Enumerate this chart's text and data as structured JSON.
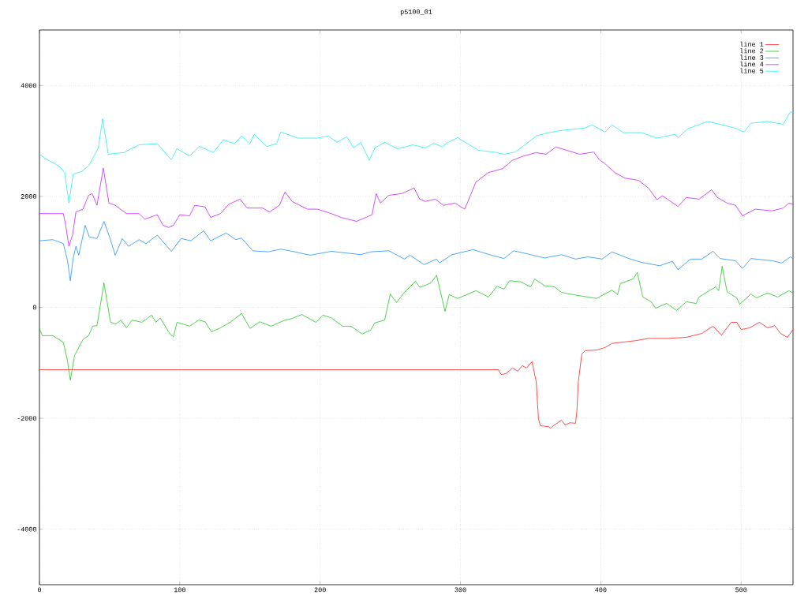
{
  "chart_data": {
    "type": "line",
    "title": "p5100_01",
    "xlim": [
      0,
      537
    ],
    "ylim": [
      -5000,
      5000
    ],
    "xticks": [
      0,
      100,
      200,
      300,
      400,
      500
    ],
    "yticks": [
      -4000,
      -2000,
      0,
      2000,
      4000
    ],
    "grid": true,
    "legend": "top right",
    "marker": "none",
    "line_style": "solid",
    "series": [
      {
        "name": "line 1",
        "color": "#ff0000",
        "x": [
          0,
          327,
          329,
          332.5,
          337,
          341,
          344,
          347,
          351,
          354,
          355.6,
          357,
          363,
          364,
          367,
          372,
          374.7,
          378,
          382,
          383,
          384,
          386.5,
          389,
          397,
          403,
          408,
          425,
          434,
          448,
          461,
          472,
          480,
          486,
          493,
          497,
          500,
          506,
          513,
          519,
          524,
          528,
          533,
          537
        ],
        "values": [
          -1125,
          -1125,
          -1210,
          -1195,
          -1095,
          -1150,
          -1050,
          -1095,
          -980,
          -1340,
          -2010,
          -2135,
          -2150,
          -2180,
          -2120,
          -2035,
          -2120,
          -2080,
          -2090,
          -1865,
          -1340,
          -840,
          -780,
          -770,
          -725,
          -650,
          -600,
          -560,
          -560,
          -540,
          -470,
          -340,
          -500,
          -270,
          -270,
          -400,
          -370,
          -270,
          -370,
          -330,
          -470,
          -540,
          -400
        ]
      },
      {
        "name": "line 2",
        "color": "#00c000",
        "x": [
          0,
          2,
          9.5,
          17,
          20,
          22,
          25,
          31,
          35,
          38,
          41,
          46,
          50.6,
          54.5,
          58,
          62,
          66,
          73,
          80,
          83,
          86,
          93,
          95.5,
          98,
          107,
          113.5,
          118,
          122.5,
          129,
          136.5,
          144,
          150,
          157,
          165,
          174,
          180,
          187,
          197,
          202,
          208,
          216,
          222,
          230,
          236,
          239,
          246,
          250,
          254.5,
          260,
          268,
          271,
          279,
          283,
          289,
          292,
          298,
          311,
          320,
          326,
          331,
          335,
          343,
          350,
          353,
          360,
          367,
          372,
          380,
          391,
          397,
          408,
          412,
          414,
          423,
          426,
          430,
          436,
          439,
          447,
          454,
          461,
          468,
          470,
          478,
          482,
          484,
          486.5,
          490,
          497,
          499,
          507,
          511,
          519,
          526,
          534,
          537
        ],
        "values": [
          -380,
          -510,
          -510,
          -630,
          -970,
          -1310,
          -870,
          -580,
          -510,
          -340,
          -330,
          440,
          -270,
          -300,
          -230,
          -370,
          -230,
          -270,
          -140,
          -270,
          -190,
          -480,
          -530,
          -270,
          -340,
          -230,
          -260,
          -440,
          -370,
          -260,
          -110,
          -380,
          -260,
          -340,
          -240,
          -200,
          -130,
          -270,
          -140,
          -190,
          -340,
          -340,
          -480,
          -410,
          -280,
          -230,
          240,
          85,
          270,
          470,
          360,
          440,
          580,
          -70,
          230,
          160,
          300,
          185,
          380,
          330,
          480,
          460,
          370,
          510,
          390,
          370,
          270,
          230,
          185,
          160,
          310,
          230,
          430,
          510,
          630,
          185,
          100,
          -15,
          70,
          -55,
          100,
          70,
          185,
          310,
          370,
          300,
          740,
          280,
          170,
          55,
          240,
          170,
          260,
          185,
          300,
          255
        ]
      },
      {
        "name": "line 3",
        "color": "#0080ff",
        "x": [
          0,
          9.5,
          17,
          20,
          22,
          24,
          26,
          28,
          32.6,
          35.5,
          41,
          46,
          50.6,
          54,
          59,
          63.5,
          71,
          76,
          84,
          94,
          101,
          108,
          117,
          122,
          133,
          140,
          144,
          152,
          163,
          172,
          180,
          193,
          208,
          229,
          236,
          249,
          260,
          264,
          274,
          283,
          285,
          294,
          309,
          322,
          331,
          338,
          350,
          360,
          372,
          382,
          391,
          401,
          408,
          420,
          429,
          442,
          451,
          455,
          464,
          472,
          480,
          485,
          496,
          501,
          507,
          522,
          529,
          535,
          537
        ],
        "values": [
          1200,
          1220,
          1150,
          840,
          480,
          880,
          1100,
          940,
          1480,
          1270,
          1240,
          1550,
          1220,
          940,
          1240,
          1100,
          1220,
          1150,
          1300,
          1010,
          1240,
          1200,
          1380,
          1200,
          1340,
          1220,
          1250,
          1020,
          1000,
          1050,
          1010,
          940,
          1010,
          950,
          1000,
          1020,
          870,
          940,
          770,
          870,
          800,
          950,
          1040,
          940,
          880,
          1020,
          950,
          890,
          950,
          870,
          910,
          870,
          1000,
          880,
          810,
          750,
          830,
          680,
          870,
          870,
          1010,
          880,
          840,
          700,
          880,
          840,
          800,
          910,
          880
        ]
      },
      {
        "name": "line 4",
        "color": "#c000ff",
        "x": [
          0,
          17,
          18.5,
          21,
          23.6,
          26,
          31,
          35,
          37.6,
          41,
          45.5,
          49.5,
          54,
          62,
          71,
          75,
          84,
          88,
          92,
          95.5,
          100,
          107,
          110.7,
          118,
          122,
          129,
          135,
          143,
          148,
          159,
          164,
          171,
          175,
          180,
          191,
          198,
          208,
          215,
          226,
          237,
          240,
          243,
          249,
          258,
          267,
          271,
          275,
          282,
          288,
          296,
          303,
          307,
          311,
          320,
          330,
          337,
          344,
          354,
          361,
          368,
          376,
          385,
          395,
          399,
          403,
          410,
          417,
          427,
          434,
          440,
          444,
          455,
          461,
          470,
          479,
          483,
          490,
          496,
          501,
          510,
          522,
          530,
          534,
          537
        ],
        "values": [
          1690,
          1690,
          1510,
          1100,
          1310,
          1720,
          1770,
          2020,
          2050,
          1840,
          2510,
          1880,
          1840,
          1690,
          1690,
          1590,
          1670,
          1480,
          1440,
          1480,
          1670,
          1650,
          1840,
          1810,
          1620,
          1690,
          1860,
          1950,
          1790,
          1790,
          1720,
          1840,
          2080,
          1910,
          1770,
          1770,
          1690,
          1620,
          1550,
          1670,
          2050,
          1880,
          2020,
          2050,
          2150,
          1950,
          1910,
          1950,
          1840,
          1880,
          1770,
          2010,
          2260,
          2430,
          2500,
          2650,
          2720,
          2790,
          2760,
          2890,
          2830,
          2760,
          2800,
          2660,
          2590,
          2430,
          2330,
          2290,
          2150,
          1940,
          2010,
          1820,
          1980,
          1950,
          2120,
          1980,
          1880,
          1840,
          1650,
          1770,
          1740,
          1790,
          1880,
          1860
        ]
      },
      {
        "name": "line 5",
        "color": "#00eeee",
        "x": [
          0,
          5.6,
          11,
          15,
          18,
          21,
          24,
          30,
          35,
          39,
          42,
          45,
          49,
          60,
          71,
          84,
          94,
          98,
          107,
          114,
          124,
          131,
          139,
          144,
          150,
          153,
          162,
          169,
          172,
          180,
          184,
          198,
          206,
          212,
          219,
          224,
          229,
          235,
          239,
          246,
          255,
          266,
          275,
          281,
          287,
          290,
          298,
          305,
          313,
          324,
          331,
          339,
          347,
          354,
          363,
          372,
          388,
          394,
          403,
          408,
          416,
          429,
          440,
          453,
          455,
          462,
          476,
          485,
          496,
          502,
          507,
          519,
          530,
          535,
          537
        ],
        "values": [
          2760,
          2660,
          2590,
          2520,
          2430,
          1880,
          2400,
          2450,
          2550,
          2730,
          2880,
          3400,
          2760,
          2790,
          2930,
          2950,
          2660,
          2860,
          2730,
          2900,
          2790,
          3020,
          2950,
          3090,
          2950,
          3120,
          2900,
          2950,
          3160,
          3090,
          3050,
          3050,
          3090,
          2975,
          3075,
          2875,
          2975,
          2650,
          2875,
          2975,
          2860,
          2930,
          2875,
          2960,
          2890,
          2960,
          3060,
          2950,
          2830,
          2800,
          2760,
          2800,
          2950,
          3090,
          3150,
          3190,
          3230,
          3290,
          3160,
          3290,
          3150,
          3150,
          3050,
          3120,
          3060,
          3220,
          3350,
          3300,
          3230,
          3160,
          3320,
          3350,
          3300,
          3520,
          3520
        ]
      }
    ]
  }
}
